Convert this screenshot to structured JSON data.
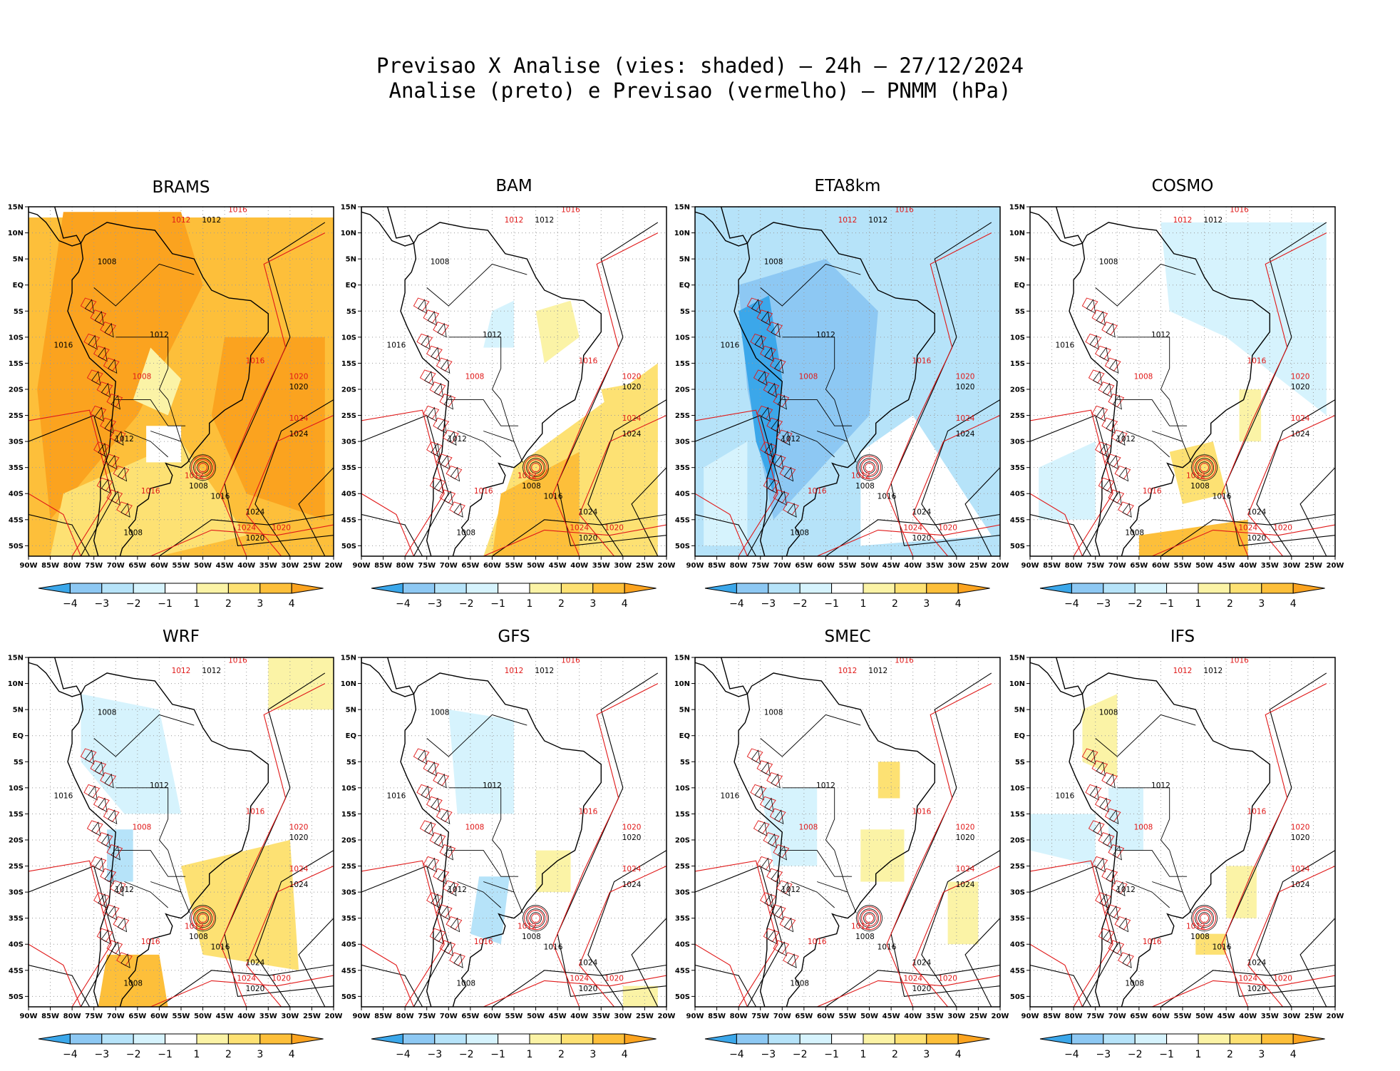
{
  "header": {
    "line1": "Previsao X Analise (vies: shaded) – 24h – 27/12/2024",
    "line2": "Analise (preto) e Previsao (vermelho) – PNMM (hPa)"
  },
  "colors": {
    "neg4": "#3ba7ea",
    "neg3": "#8dc8f3",
    "neg2": "#b6e3f9",
    "neg1": "#d6f3fd",
    "zero": "#ffffff",
    "pos1": "#fbf3a6",
    "pos2": "#fde173",
    "pos3": "#fdbf3a",
    "pos4": "#fba31f",
    "analysis_contour": "#000000",
    "forecast_contour": "#e01818"
  },
  "chart_data": [
    {
      "type": "contour_map",
      "model": "BRAMS",
      "bias_level": "mostly +2 to +4",
      "panel": 1
    },
    {
      "type": "contour_map",
      "model": "BAM",
      "bias_level": "mixed",
      "panel": 2
    },
    {
      "type": "contour_map",
      "model": "ETA8km",
      "bias_level": "mostly -1 to -3",
      "panel": 3
    },
    {
      "type": "contour_map",
      "model": "COSMO",
      "bias_level": "mixed",
      "panel": 4
    },
    {
      "type": "contour_map",
      "model": "WRF",
      "bias_level": "mixed",
      "panel": 5
    },
    {
      "type": "contour_map",
      "model": "GFS",
      "bias_level": "near zero",
      "panel": 6
    },
    {
      "type": "contour_map",
      "model": "SMEC",
      "bias_level": "near zero",
      "panel": 7
    },
    {
      "type": "contour_map",
      "model": "IFS",
      "bias_level": "near zero",
      "panel": 8
    }
  ],
  "axes": {
    "lat_labels": [
      "15N",
      "10N",
      "5N",
      "EQ",
      "5S",
      "10S",
      "15S",
      "20S",
      "25S",
      "30S",
      "35S",
      "40S",
      "45S",
      "50S"
    ],
    "lon_labels": [
      "90W",
      "85W",
      "80W",
      "75W",
      "70W",
      "65W",
      "60W",
      "55W",
      "50W",
      "45W",
      "40W",
      "35W",
      "30W",
      "25W",
      "20W"
    ],
    "lat_range": [
      15,
      -52
    ],
    "lon_range": [
      -90,
      -20
    ]
  },
  "colorbar": {
    "labels": [
      "−4",
      "−3",
      "−2",
      "−1",
      "1",
      "2",
      "3",
      "4"
    ]
  },
  "contour_labels": {
    "analysis": [
      "1012",
      "1008",
      "1016",
      "1020",
      "1024"
    ],
    "forecast": [
      "1012",
      "1016",
      "1008",
      "1020",
      "1024"
    ]
  }
}
